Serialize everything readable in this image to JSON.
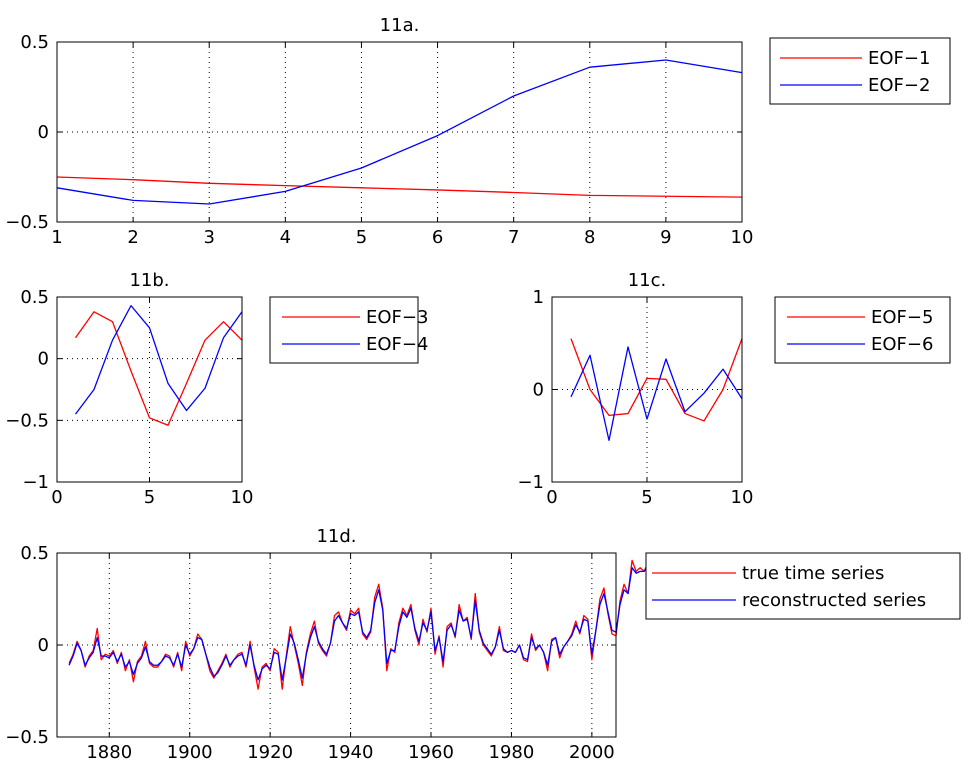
{
  "chart_data": [
    {
      "id": "11a",
      "type": "line",
      "title": "11a.",
      "xlim": [
        1,
        10
      ],
      "ylim": [
        -0.5,
        0.5
      ],
      "xticks": [
        1,
        2,
        3,
        4,
        5,
        6,
        7,
        8,
        9,
        10
      ],
      "yticks": [
        -0.5,
        0,
        0.5
      ],
      "xtick_labels": [
        "1",
        "2",
        "3",
        "4",
        "5",
        "6",
        "7",
        "8",
        "9",
        "10"
      ],
      "ytick_labels": [
        "−0.5",
        "0",
        "0.5"
      ],
      "grid": true,
      "legend_position": "outside-right",
      "series": [
        {
          "name": "EOF−1",
          "color": "#ff0000",
          "x": [
            1,
            2,
            3,
            4,
            5,
            6,
            7,
            8,
            9,
            10
          ],
          "y": [
            -0.25,
            -0.265,
            -0.285,
            -0.298,
            -0.31,
            -0.322,
            -0.336,
            -0.352,
            -0.357,
            -0.362
          ]
        },
        {
          "name": "EOF−2",
          "color": "#0000ff",
          "x": [
            1,
            2,
            3,
            4,
            5,
            6,
            7,
            8,
            9,
            10
          ],
          "y": [
            -0.31,
            -0.38,
            -0.4,
            -0.33,
            -0.2,
            -0.02,
            0.2,
            0.36,
            0.4,
            0.33
          ]
        }
      ]
    },
    {
      "id": "11b",
      "type": "line",
      "title": "11b.",
      "xlim": [
        0,
        10
      ],
      "ylim": [
        -1,
        0.5
      ],
      "xticks": [
        0,
        5,
        10
      ],
      "yticks": [
        -1,
        -0.5,
        0,
        0.5
      ],
      "xtick_labels": [
        "0",
        "5",
        "10"
      ],
      "ytick_labels": [
        "−1",
        "−0.5",
        "0",
        "0.5"
      ],
      "grid": true,
      "legend_position": "outside-right",
      "series": [
        {
          "name": "EOF−3",
          "color": "#ff0000",
          "x": [
            1,
            2,
            3,
            4,
            5,
            6,
            7,
            8,
            9,
            10
          ],
          "y": [
            0.17,
            0.38,
            0.3,
            -0.1,
            -0.48,
            -0.54,
            -0.2,
            0.15,
            0.3,
            0.15
          ]
        },
        {
          "name": "EOF−4",
          "color": "#0000ff",
          "x": [
            1,
            2,
            3,
            4,
            5,
            6,
            7,
            8,
            9,
            10
          ],
          "y": [
            -0.45,
            -0.25,
            0.15,
            0.43,
            0.25,
            -0.2,
            -0.42,
            -0.24,
            0.17,
            0.38
          ]
        }
      ]
    },
    {
      "id": "11c",
      "type": "line",
      "title": "11c.",
      "xlim": [
        0,
        10
      ],
      "ylim": [
        -1,
        1
      ],
      "xticks": [
        0,
        5,
        10
      ],
      "yticks": [
        -1,
        0,
        1
      ],
      "xtick_labels": [
        "0",
        "5",
        "10"
      ],
      "ytick_labels": [
        "−1",
        "0",
        "1"
      ],
      "grid": true,
      "legend_position": "outside-right",
      "series": [
        {
          "name": "EOF−5",
          "color": "#ff0000",
          "x": [
            1,
            2,
            3,
            4,
            5,
            6,
            7,
            8,
            9,
            10
          ],
          "y": [
            0.55,
            0.0,
            -0.28,
            -0.26,
            0.12,
            0.11,
            -0.26,
            -0.34,
            0.0,
            0.55
          ]
        },
        {
          "name": "EOF−6",
          "color": "#0000ff",
          "x": [
            1,
            2,
            3,
            4,
            5,
            6,
            7,
            8,
            9,
            10
          ],
          "y": [
            -0.08,
            0.37,
            -0.55,
            0.46,
            -0.32,
            0.33,
            -0.24,
            -0.04,
            0.22,
            -0.1
          ]
        }
      ]
    },
    {
      "id": "11d",
      "type": "line",
      "title": "11d.",
      "xlim": [
        1867,
        2006
      ],
      "ylim": [
        -0.5,
        0.5
      ],
      "xticks": [
        1880,
        1900,
        1920,
        1940,
        1960,
        1980,
        2000
      ],
      "yticks": [
        -0.5,
        0,
        0.5
      ],
      "xtick_labels": [
        "1880",
        "1900",
        "1920",
        "1940",
        "1960",
        "1980",
        "2000"
      ],
      "ytick_labels": [
        "−0.5",
        "0",
        "0.5"
      ],
      "grid": true,
      "legend_position": "outside-right",
      "series": [
        {
          "name": "true time series",
          "color": "#ff0000",
          "x_start": 1870,
          "x_step": 1,
          "y": [
            -0.1,
            -0.05,
            0.02,
            -0.03,
            -0.12,
            -0.06,
            -0.03,
            0.09,
            -0.08,
            -0.05,
            -0.06,
            -0.03,
            -0.1,
            -0.04,
            -0.14,
            -0.08,
            -0.2,
            -0.09,
            -0.06,
            0.02,
            -0.1,
            -0.12,
            -0.12,
            -0.09,
            -0.05,
            -0.06,
            -0.12,
            -0.04,
            -0.14,
            0.02,
            -0.06,
            -0.02,
            0.06,
            0.03,
            -0.05,
            -0.14,
            -0.18,
            -0.14,
            -0.1,
            -0.05,
            -0.12,
            -0.08,
            -0.05,
            -0.04,
            -0.12,
            0.02,
            -0.12,
            -0.24,
            -0.12,
            -0.1,
            -0.14,
            -0.02,
            -0.04,
            -0.24,
            -0.06,
            0.1,
            0.0,
            -0.1,
            -0.22,
            -0.04,
            0.06,
            0.13,
            0.01,
            -0.03,
            -0.06,
            0.01,
            0.16,
            0.18,
            0.12,
            0.08,
            0.19,
            0.17,
            0.2,
            0.06,
            0.03,
            0.07,
            0.26,
            0.33,
            0.2,
            -0.14,
            -0.02,
            -0.04,
            0.12,
            0.2,
            0.16,
            0.22,
            0.08,
            0.0,
            0.14,
            0.07,
            0.2,
            -0.05,
            0.05,
            -0.12,
            0.1,
            0.12,
            0.04,
            0.22,
            0.13,
            0.15,
            0.03,
            0.28,
            0.07,
            0.0,
            -0.03,
            -0.06,
            -0.01,
            0.1,
            -0.03,
            -0.04,
            -0.03,
            -0.04,
            0.0,
            -0.08,
            -0.09,
            0.06,
            -0.03,
            0.0,
            -0.04,
            -0.14,
            0.03,
            0.04,
            -0.07,
            -0.01,
            0.02,
            0.06,
            0.13,
            0.06,
            0.16,
            0.14,
            -0.08,
            0.08,
            0.25,
            0.31,
            0.17,
            0.06,
            0.05,
            0.24,
            0.33,
            0.28,
            0.46,
            0.4,
            0.42,
            0.4,
            0.45,
            0.44,
            0.48
          ]
        },
        {
          "name": "reconstructed series",
          "color": "#0000ff",
          "x_start": 1870,
          "x_step": 1,
          "y": [
            -0.11,
            -0.06,
            0.01,
            -0.03,
            -0.11,
            -0.07,
            -0.04,
            0.04,
            -0.06,
            -0.06,
            -0.07,
            -0.04,
            -0.09,
            -0.05,
            -0.12,
            -0.09,
            -0.16,
            -0.1,
            -0.07,
            -0.01,
            -0.09,
            -0.11,
            -0.11,
            -0.09,
            -0.06,
            -0.07,
            -0.11,
            -0.05,
            -0.12,
            0.0,
            -0.05,
            -0.02,
            0.04,
            0.03,
            -0.05,
            -0.12,
            -0.17,
            -0.15,
            -0.11,
            -0.06,
            -0.11,
            -0.08,
            -0.06,
            -0.05,
            -0.11,
            0.0,
            -0.11,
            -0.19,
            -0.13,
            -0.11,
            -0.13,
            -0.04,
            -0.05,
            -0.19,
            -0.07,
            0.06,
            0.01,
            -0.08,
            -0.18,
            -0.05,
            0.04,
            0.1,
            0.02,
            -0.02,
            -0.05,
            0.01,
            0.13,
            0.16,
            0.12,
            0.09,
            0.17,
            0.16,
            0.18,
            0.07,
            0.04,
            0.08,
            0.23,
            0.3,
            0.19,
            -0.1,
            -0.03,
            -0.03,
            0.1,
            0.18,
            0.15,
            0.2,
            0.09,
            0.02,
            0.12,
            0.08,
            0.18,
            -0.03,
            0.04,
            -0.09,
            0.08,
            0.11,
            0.05,
            0.19,
            0.13,
            0.14,
            0.04,
            0.24,
            0.08,
            0.01,
            -0.02,
            -0.05,
            -0.01,
            0.08,
            -0.02,
            -0.04,
            -0.03,
            -0.04,
            0.0,
            -0.07,
            -0.08,
            0.04,
            -0.02,
            0.0,
            -0.04,
            -0.11,
            0.02,
            0.04,
            -0.05,
            -0.01,
            0.02,
            0.05,
            0.11,
            0.07,
            0.14,
            0.13,
            -0.05,
            0.08,
            0.22,
            0.28,
            0.18,
            0.08,
            0.07,
            0.22,
            0.3,
            0.28,
            0.42,
            0.39,
            0.4,
            0.4,
            0.43,
            0.43,
            0.45
          ]
        }
      ]
    }
  ]
}
